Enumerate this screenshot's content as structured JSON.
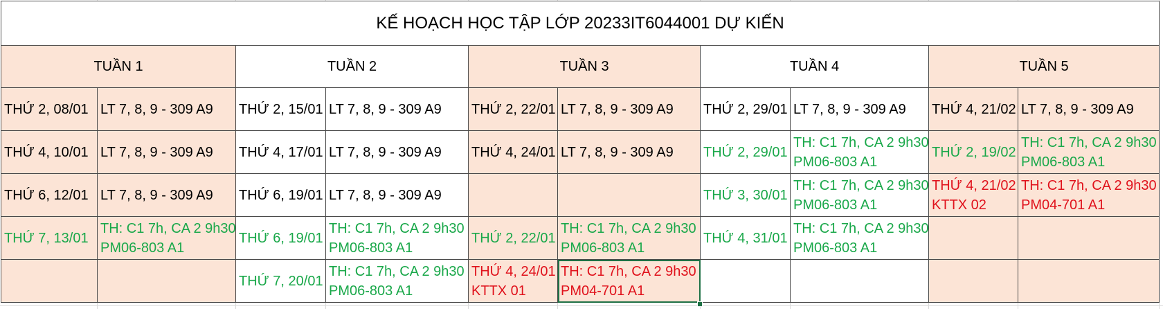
{
  "title": "KẾ HOẠCH HỌC TẬP LỚP 20233IT6044001 DỰ KIẾN",
  "weeks": [
    "TUẦN 1",
    "TUẦN 2",
    "TUẦN 3",
    "TUẦN 4",
    "TUẦN 5"
  ],
  "rows": [
    [
      {
        "day": "THỨ 2, 08/01",
        "info": [
          "LT 7, 8, 9 - 309 A9"
        ],
        "color": "black"
      },
      {
        "day": "THỨ 2, 15/01",
        "info": [
          "LT 7, 8, 9 - 309 A9"
        ],
        "color": "black"
      },
      {
        "day": "THỨ 2, 22/01",
        "info": [
          "LT 7, 8, 9 - 309 A9"
        ],
        "color": "black"
      },
      {
        "day": "THỨ 2, 29/01",
        "info": [
          "LT 7, 8, 9 - 309 A9"
        ],
        "color": "black"
      },
      {
        "day": "THỨ 4, 21/02",
        "info": [
          "LT 7, 8, 9 - 309 A9"
        ],
        "color": "black"
      }
    ],
    [
      {
        "day": "THỨ 4, 10/01",
        "info": [
          "LT 7, 8, 9 - 309 A9"
        ],
        "color": "black"
      },
      {
        "day": "THỨ 4, 17/01",
        "info": [
          "LT 7, 8, 9 - 309 A9"
        ],
        "color": "black"
      },
      {
        "day": "THỨ 4, 24/01",
        "info": [
          "LT 7, 8, 9 - 309 A9"
        ],
        "color": "black"
      },
      {
        "day": "THỨ 2, 29/01",
        "info": [
          "TH: C1 7h, CA 2 9h30",
          "PM06-803 A1"
        ],
        "color": "green"
      },
      {
        "day": "THỨ 2, 19/02",
        "info": [
          "TH: C1 7h, CA 2 9h30",
          "PM06-803 A1"
        ],
        "color": "green"
      }
    ],
    [
      {
        "day": "THỨ 6, 12/01",
        "info": [
          "LT 7, 8, 9 - 309 A9"
        ],
        "color": "black"
      },
      {
        "day": "THỨ 6, 19/01",
        "info": [
          "LT 7, 8, 9 - 309 A9"
        ],
        "color": "black"
      },
      {
        "day": "",
        "info": [],
        "color": "black"
      },
      {
        "day": "THỨ 3, 30/01",
        "info": [
          "TH: C1 7h, CA 2 9h30",
          "PM06-803 A1"
        ],
        "color": "green"
      },
      {
        "day": [
          "THỨ 4, 21/02",
          "KTTX 02"
        ],
        "info": [
          "TH: C1 7h, CA 2 9h30",
          "PM04-701 A1"
        ],
        "color": "red"
      }
    ],
    [
      {
        "day": "THỨ 7, 13/01",
        "info": [
          "TH: C1 7h, CA 2 9h30",
          "PM06-803 A1"
        ],
        "color": "green"
      },
      {
        "day": "THỨ 6, 19/01",
        "info": [
          "TH: C1 7h, CA 2 9h30",
          "PM06-803 A1"
        ],
        "color": "green"
      },
      {
        "day": "THỨ 2, 22/01",
        "info": [
          "TH: C1 7h, CA 2 9h30",
          "PM06-803 A1"
        ],
        "color": "green"
      },
      {
        "day": "THỨ 4, 31/01",
        "info": [
          "TH: C1 7h, CA 2 9h30",
          "PM06-803 A1"
        ],
        "color": "green"
      },
      {
        "day": "",
        "info": [],
        "color": "black"
      }
    ],
    [
      {
        "day": "",
        "info": [],
        "color": "black"
      },
      {
        "day": "THỨ 7, 20/01",
        "info": [
          "TH: C1 7h, CA 2 9h30",
          "PM06-803 A1"
        ],
        "color": "green"
      },
      {
        "day": [
          "THỨ 4, 24/01",
          "KTTX 01"
        ],
        "info": [
          "TH: C1 7h, CA 2 9h30",
          "PM04-701 A1"
        ],
        "color": "red"
      },
      {
        "day": "",
        "info": [],
        "color": "black"
      },
      {
        "day": "",
        "info": [],
        "color": "black"
      }
    ]
  ],
  "colors": {
    "peach": "#fce4d6",
    "green": "#1aa84a",
    "red": "#e0121c",
    "selection": "#1e7145"
  }
}
